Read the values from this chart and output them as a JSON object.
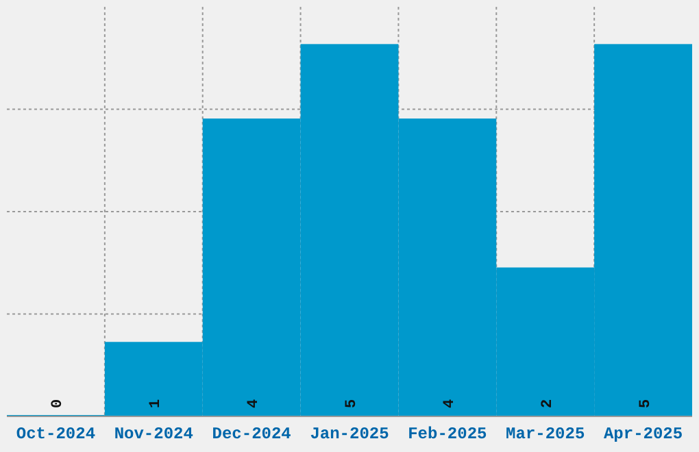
{
  "chart_data": {
    "type": "bar",
    "categories": [
      "Oct-2024",
      "Nov-2024",
      "Dec-2024",
      "Jan-2025",
      "Feb-2025",
      "Mar-2025",
      "Apr-2025"
    ],
    "values": [
      0,
      1,
      4,
      5,
      4,
      2,
      5
    ],
    "color": "#0099cc",
    "ylim": [
      0,
      5.5
    ],
    "yticks": [
      {
        "value": 1.375,
        "label": null
      },
      {
        "value": 2.75,
        "label": null
      },
      {
        "value": 4.125,
        "label": null
      }
    ],
    "grid": true,
    "data_labels": true,
    "tick_labels": "x"
  }
}
